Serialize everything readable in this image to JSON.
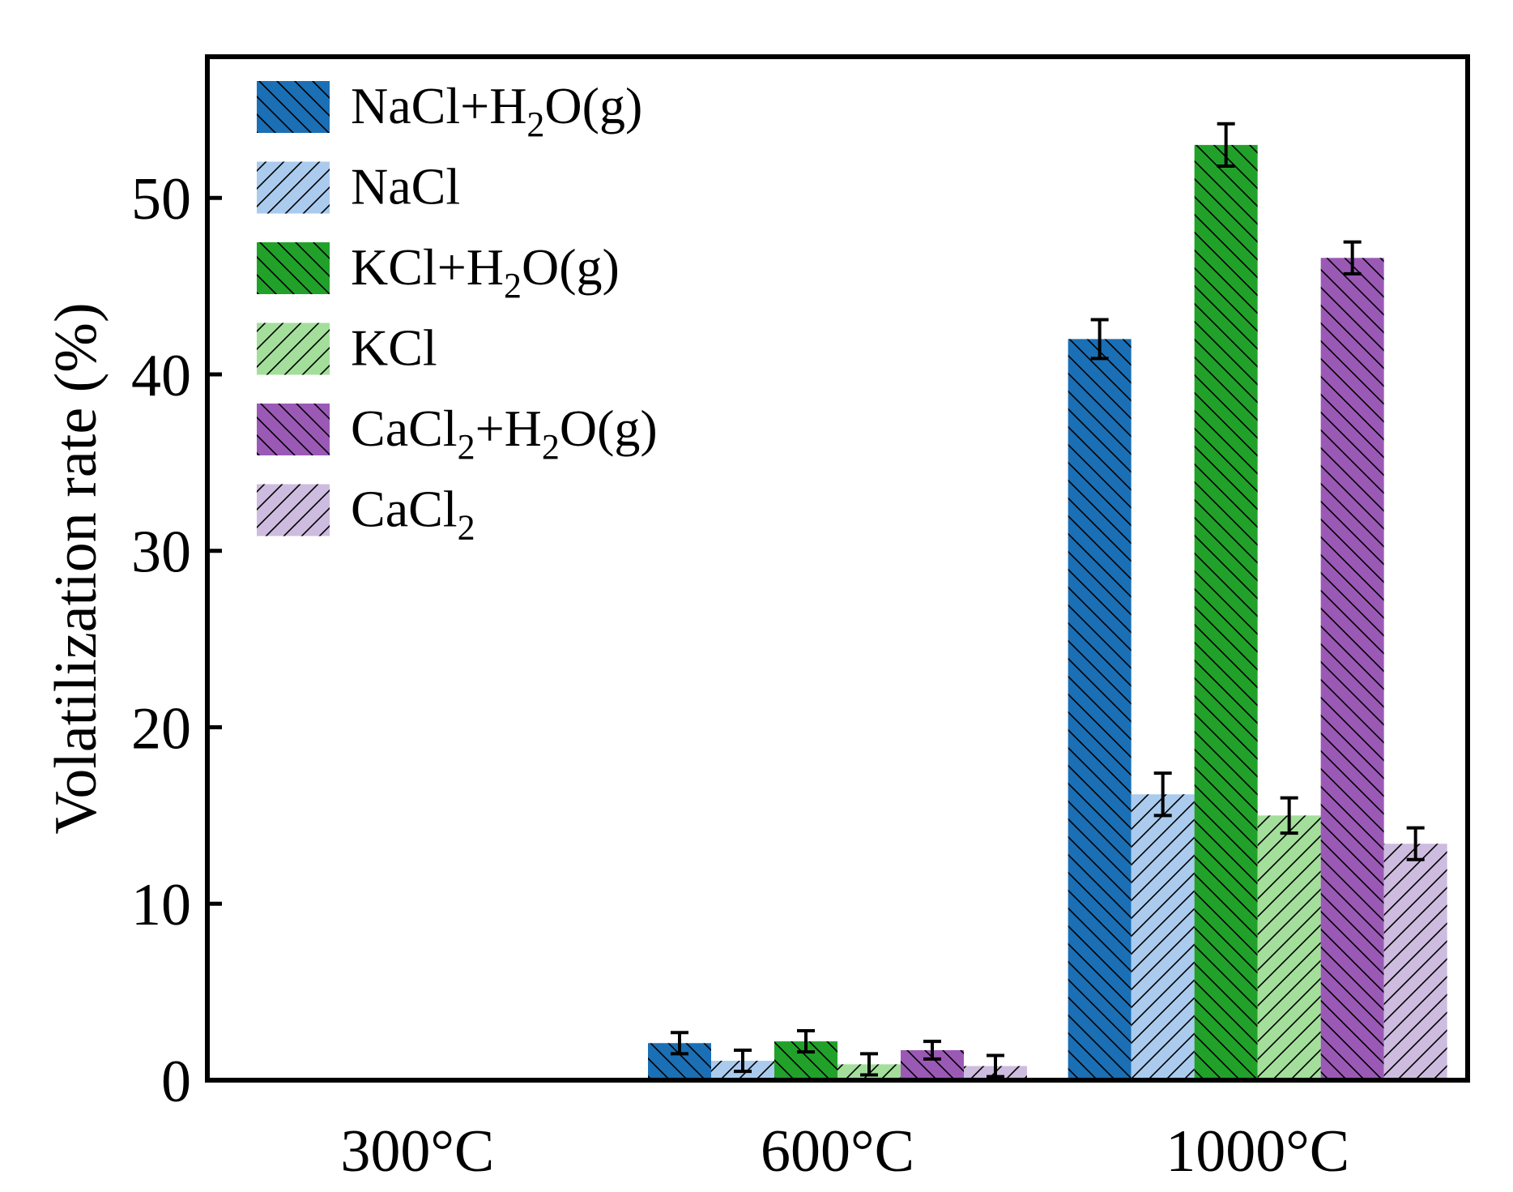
{
  "chart_data": {
    "type": "bar",
    "title": "",
    "xlabel": "",
    "ylabel": "Volatilization rate (%)",
    "ylim": [
      0,
      58
    ],
    "yticks": [
      0,
      10,
      20,
      30,
      40,
      50
    ],
    "ytick_labels": [
      "0",
      "10",
      "20",
      "30",
      "40",
      "50"
    ],
    "categories": [
      "300°C",
      "600°C",
      "1000°C"
    ],
    "legend_position": "top-left",
    "series": [
      {
        "name": "NaCl+H2O(g)",
        "label_parts": [
          {
            "t": "NaCl+H"
          },
          {
            "t": "2",
            "sub": true
          },
          {
            "t": "O(g)"
          }
        ],
        "color": "#1a6fb5",
        "hatch": "backslash",
        "values": [
          0,
          2.1,
          42.0
        ],
        "errors": [
          0,
          0.6,
          1.1
        ]
      },
      {
        "name": "NaCl",
        "label_parts": [
          {
            "t": "NaCl"
          }
        ],
        "color": "#aacbee",
        "hatch": "slash",
        "values": [
          0,
          1.1,
          16.2
        ],
        "errors": [
          0,
          0.6,
          1.2
        ]
      },
      {
        "name": "KCl+H2O(g)",
        "label_parts": [
          {
            "t": "KCl+H"
          },
          {
            "t": "2",
            "sub": true
          },
          {
            "t": "O(g)"
          }
        ],
        "color": "#21a12a",
        "hatch": "backslash",
        "values": [
          0,
          2.2,
          53.0
        ],
        "errors": [
          0,
          0.6,
          1.2
        ]
      },
      {
        "name": "KCl",
        "label_parts": [
          {
            "t": "KCl"
          }
        ],
        "color": "#a3df9b",
        "hatch": "slash",
        "values": [
          0,
          0.9,
          15.0
        ],
        "errors": [
          0,
          0.6,
          1.0
        ]
      },
      {
        "name": "CaCl2+H2O(g)",
        "label_parts": [
          {
            "t": "CaCl"
          },
          {
            "t": "2",
            "sub": true
          },
          {
            "t": "+H"
          },
          {
            "t": "2",
            "sub": true
          },
          {
            "t": "O(g)"
          }
        ],
        "color": "#9b59b6",
        "hatch": "backslash",
        "values": [
          0,
          1.7,
          46.6
        ],
        "errors": [
          0,
          0.5,
          0.9
        ]
      },
      {
        "name": "CaCl2",
        "label_parts": [
          {
            "t": "CaCl"
          },
          {
            "t": "2",
            "sub": true
          }
        ],
        "color": "#cdbcdf",
        "hatch": "slash",
        "values": [
          0,
          0.8,
          13.4
        ],
        "errors": [
          0,
          0.6,
          0.9
        ]
      }
    ]
  }
}
